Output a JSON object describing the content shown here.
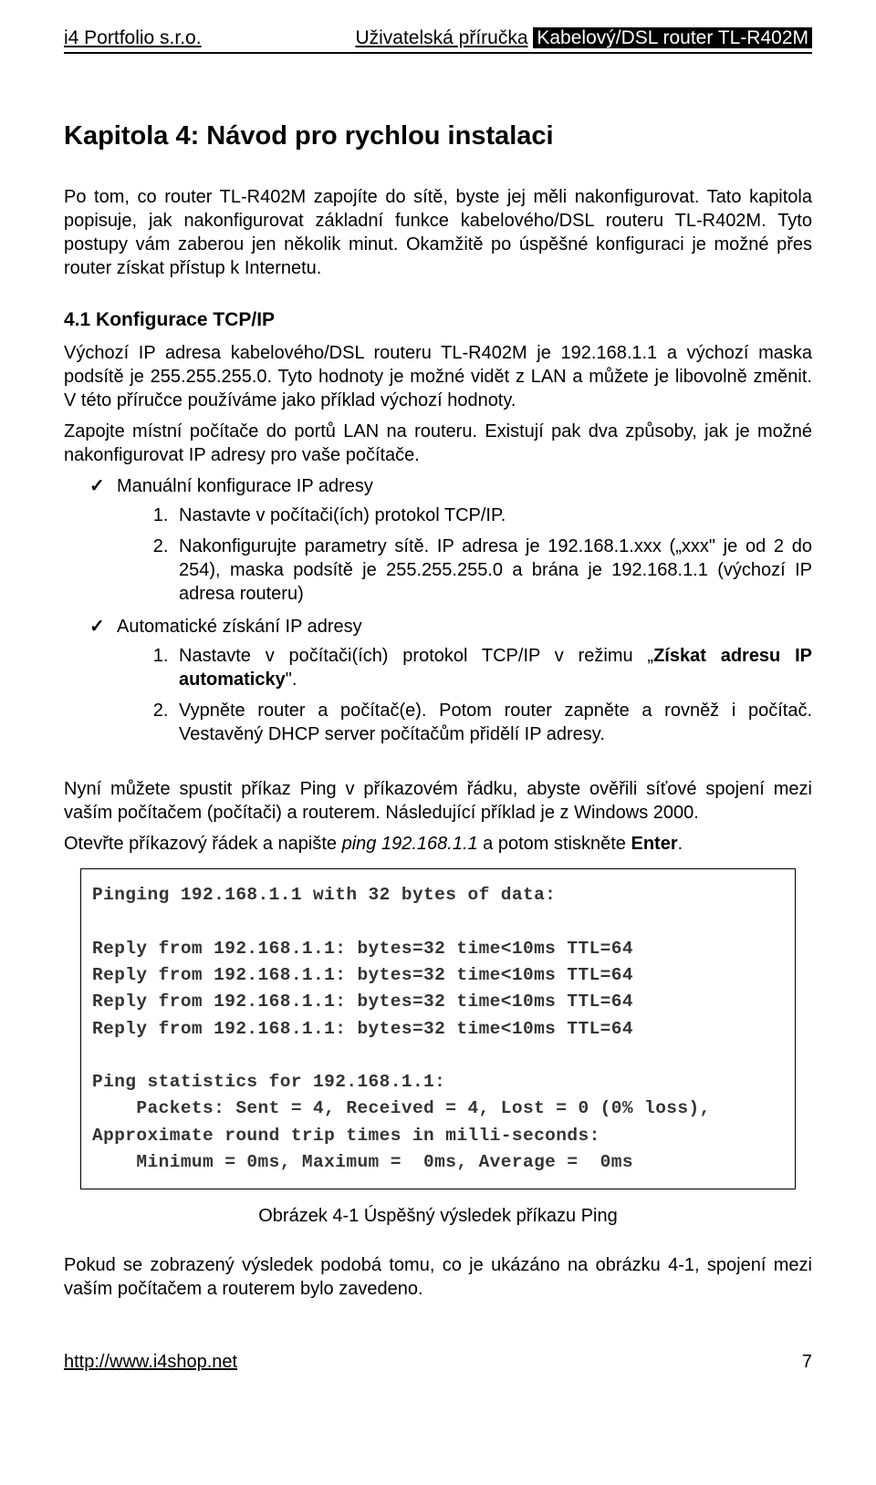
{
  "header": {
    "left": "i4 Portfolio s.r.o.",
    "right_underlined": "Uživatelská příručka",
    "right_inverse": "Kabelový/DSL router TL-R402M"
  },
  "chapter_title": "Kapitola 4: Návod pro rychlou instalaci",
  "p1": "Po tom, co router TL-R402M zapojíte do sítě, byste jej měli nakonfigurovat. Tato kapitola popisuje, jak nakonfigurovat základní funkce kabelového/DSL routeru TL-R402M. Tyto postupy vám zaberou jen několik minut. Okamžitě po úspěšné konfiguraci je možné přes router získat přístup k Internetu.",
  "section_title": "4.1 Konfigurace TCP/IP",
  "p2": "Výchozí IP adresa kabelového/DSL routeru TL-R402M je 192.168.1.1 a výchozí maska podsítě je 255.255.255.0. Tyto hodnoty je možné vidět z LAN a můžete je libovolně změnit. V této příručce používáme jako příklad výchozí hodnoty.",
  "p3": "Zapojte místní počítače do portů LAN na routeru. Existují pak dva způsoby, jak je možné nakonfigurovat IP adresy pro vaše počítače.",
  "manual": {
    "heading": "Manuální konfigurace IP adresy",
    "step1": "Nastavte v počítači(ích) protokol TCP/IP.",
    "step2": "Nakonfigurujte parametry sítě. IP adresa je 192.168.1.xxx („xxx\" je od 2 do 254), maska podsítě je 255.255.255.0 a brána je 192.168.1.1 (výchozí IP adresa routeru)"
  },
  "auto": {
    "heading": "Automatické získání IP adresy",
    "step1_a": "Nastavte v počítači(ích) protokol TCP/IP v režimu „",
    "step1_b": "Získat adresu IP automaticky",
    "step1_c": "\".",
    "step2": "Vypněte router a počítač(e). Potom router zapněte a rovněž i počítač. Vestavěný DHCP server počítačům přidělí IP adresy."
  },
  "p4": "Nyní můžete spustit příkaz Ping v příkazovém řádku, abyste ověřili síťové spojení mezi vaším počítačem (počítači) a routerem. Následující příklad je z Windows 2000.",
  "p5_a": "Otevřte příkazový řádek a napište ",
  "p5_b": "ping 192.168.1.1",
  "p5_c": " a potom stiskněte ",
  "p5_d": "Enter",
  "p5_e": ".",
  "console": "Pinging 192.168.1.1 with 32 bytes of data:\n\nReply from 192.168.1.1: bytes=32 time<10ms TTL=64\nReply from 192.168.1.1: bytes=32 time<10ms TTL=64\nReply from 192.168.1.1: bytes=32 time<10ms TTL=64\nReply from 192.168.1.1: bytes=32 time<10ms TTL=64\n\nPing statistics for 192.168.1.1:\n    Packets: Sent = 4, Received = 4, Lost = 0 (0% loss),\nApproximate round trip times in milli-seconds:\n    Minimum = 0ms, Maximum =  0ms, Average =  0ms",
  "caption": "Obrázek 4-1   Úspěšný výsledek příkazu Ping",
  "p6": "Pokud se zobrazený výsledek podobá tomu, co je ukázáno na obrázku 4-1, spojení mezi vaším počítačem a routerem bylo zavedeno.",
  "footer": {
    "url": "http://www.i4shop.net",
    "page": "7"
  }
}
